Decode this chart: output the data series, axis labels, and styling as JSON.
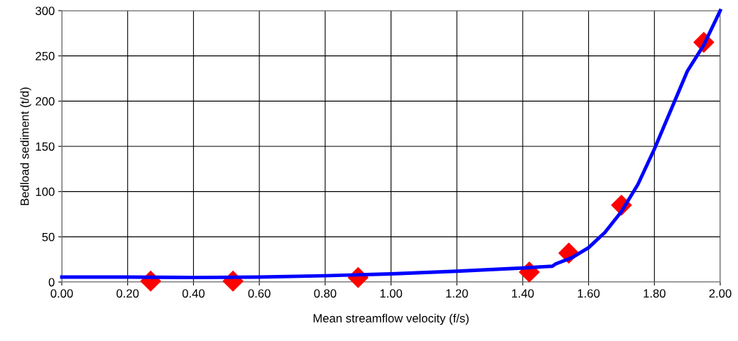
{
  "chart_data": {
    "type": "scatter",
    "xlabel": "Mean streamflow velocity (f/s)",
    "ylabel": "Bedload sediment (t/d)",
    "xlim": [
      0,
      2
    ],
    "xticks": [
      {
        "value": 0,
        "label": "0.00"
      },
      {
        "value": 0.2,
        "label": "0.20"
      },
      {
        "value": 0.4,
        "label": "0.40"
      },
      {
        "value": 0.6,
        "label": "0.60"
      },
      {
        "value": 0.8,
        "label": "0.80"
      },
      {
        "value": 1.0,
        "label": "1.00"
      },
      {
        "value": 1.2,
        "label": "1.20"
      },
      {
        "value": 1.4,
        "label": "1.40"
      },
      {
        "value": 1.6,
        "label": "1.60"
      },
      {
        "value": 1.8,
        "label": "1.80"
      },
      {
        "value": 2.0,
        "label": "2.00"
      }
    ],
    "ylim": [
      0,
      300
    ],
    "yticks": [
      0,
      50,
      100,
      150,
      200,
      250,
      300
    ],
    "grid": true,
    "series": [
      {
        "color": "#ff0000",
        "marker": "diamond",
        "x": [
          0.27,
          0.52,
          0.9,
          1.42,
          1.54,
          1.7,
          1.95
        ],
        "values": [
          1,
          1,
          5,
          11,
          32,
          85,
          265
        ]
      },
      {
        "type": "line",
        "color": "#0000ff",
        "marker": "none",
        "line_style": "solid",
        "x": [
          0,
          0.2,
          0.4,
          0.6,
          0.8,
          1.0,
          1.2,
          1.4,
          1.49,
          1.5,
          1.55,
          1.6,
          1.65,
          1.7,
          1.75,
          1.8,
          1.85,
          1.9,
          1.95,
          2.0
        ],
        "values": [
          5.5,
          5.5,
          5,
          5.5,
          7,
          9,
          12,
          15.5,
          17.5,
          20,
          27,
          38,
          55,
          78,
          108,
          147,
          190,
          233,
          262,
          300
        ]
      }
    ]
  }
}
